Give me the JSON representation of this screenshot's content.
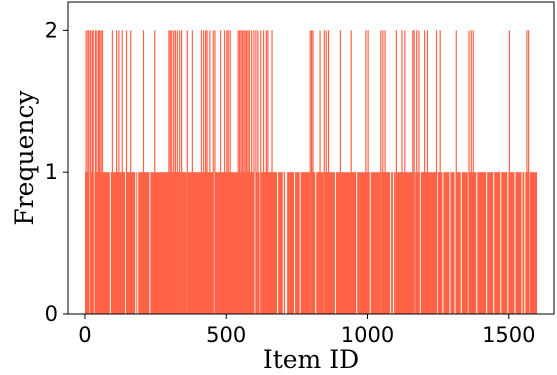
{
  "chart_data": {
    "type": "bar",
    "title": "",
    "xlabel": "Item ID",
    "ylabel": "Frequency",
    "xlim": [
      -60,
      1660
    ],
    "ylim": [
      0,
      2.2
    ],
    "xticks": [
      0,
      500,
      1000,
      1500
    ],
    "yticks": [
      0,
      1,
      2
    ],
    "color": "#FF6347",
    "grid": false,
    "legend": null,
    "x_range": [
      0,
      1600
    ],
    "series": [
      {
        "values_description": "",
        "segments": [
          {
            "x_start": 0,
            "x_end": 690,
            "value": 1
          },
          {
            "x_start": 690,
            "x_end": 1600,
            "value": 1
          }
        ],
        "points_value_2": [
          2,
          8,
          12,
          18,
          24,
          27,
          35,
          40,
          46,
          50,
          55,
          60,
          95,
          110,
          118,
          130,
          145,
          160,
          205,
          245,
          295,
          300,
          305,
          312,
          318,
          325,
          333,
          340,
          360,
          378,
          410,
          418,
          425,
          430,
          440,
          452,
          458,
          478,
          492,
          500,
          505,
          512,
          540,
          545,
          550,
          555,
          560,
          565,
          570,
          575,
          580,
          588,
          596,
          603,
          610,
          620,
          630,
          640,
          645,
          660,
          795,
          800,
          805,
          830,
          845,
          852,
          860,
          902,
          940,
          992,
          1000,
          1045,
          1052,
          1060,
          1100,
          1120,
          1130,
          1158,
          1163,
          1172,
          1180,
          1200,
          1210,
          1242,
          1255,
          1312,
          1357,
          1365,
          1372,
          1500,
          1562,
          1568
        ],
        "gaps_value_0": [
          15,
          30,
          88,
          142,
          178,
          185,
          228,
          340,
          360,
          455,
          600,
          618,
          680,
          700,
          708,
          712,
          740,
          760,
          795,
          815,
          845,
          885,
          960,
          1000,
          1008,
          1045,
          1080,
          1090,
          1100,
          1165,
          1185,
          1245,
          1265,
          1290,
          1308,
          1330,
          1355,
          1385,
          1420,
          1445,
          1470,
          1495,
          1520,
          1545,
          1555,
          1570
        ]
      }
    ]
  }
}
